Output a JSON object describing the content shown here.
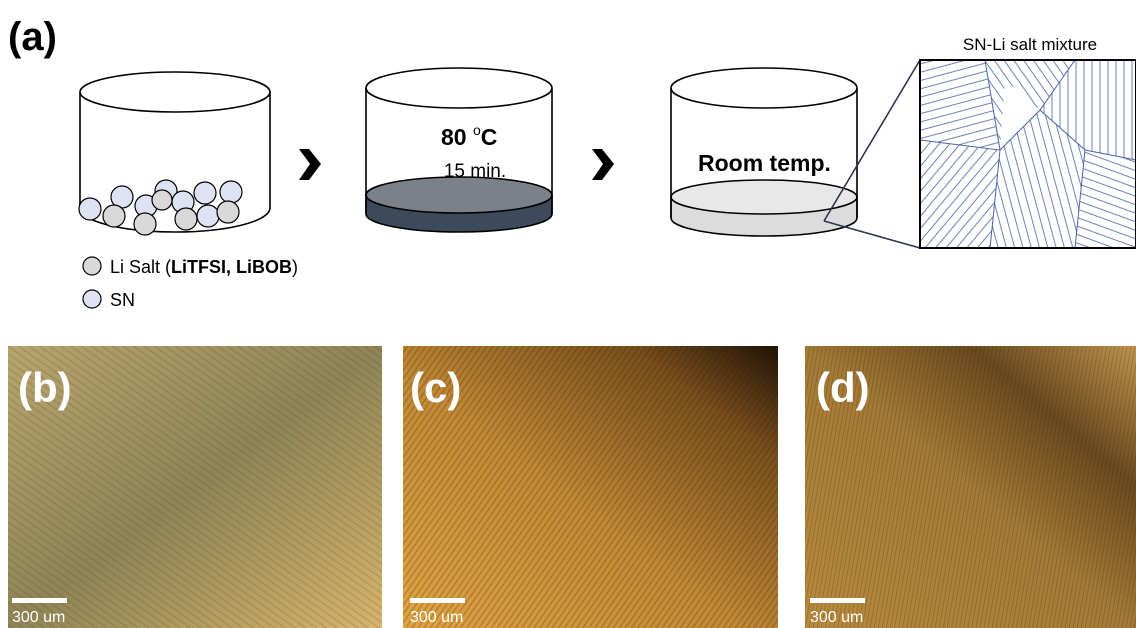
{
  "panel_a": {
    "label": "(a)",
    "heating_step": {
      "temperature": "80 ",
      "degree": "o",
      "unit": "C",
      "duration": "15 min."
    },
    "cooling_step": {
      "condition": "Room temp."
    },
    "inset_title": "SN-Li salt mixture",
    "legend": [
      {
        "text_parts": [
          "Li Salt (",
          "LiTFSI, LiBOB",
          ")"
        ]
      },
      {
        "text": "SN"
      }
    ]
  },
  "images": [
    {
      "label": "(b)",
      "scale_bar": "300 um"
    },
    {
      "label": "(c)",
      "scale_bar": "300 um"
    },
    {
      "label": "(d)",
      "scale_bar": "300 um"
    }
  ]
}
